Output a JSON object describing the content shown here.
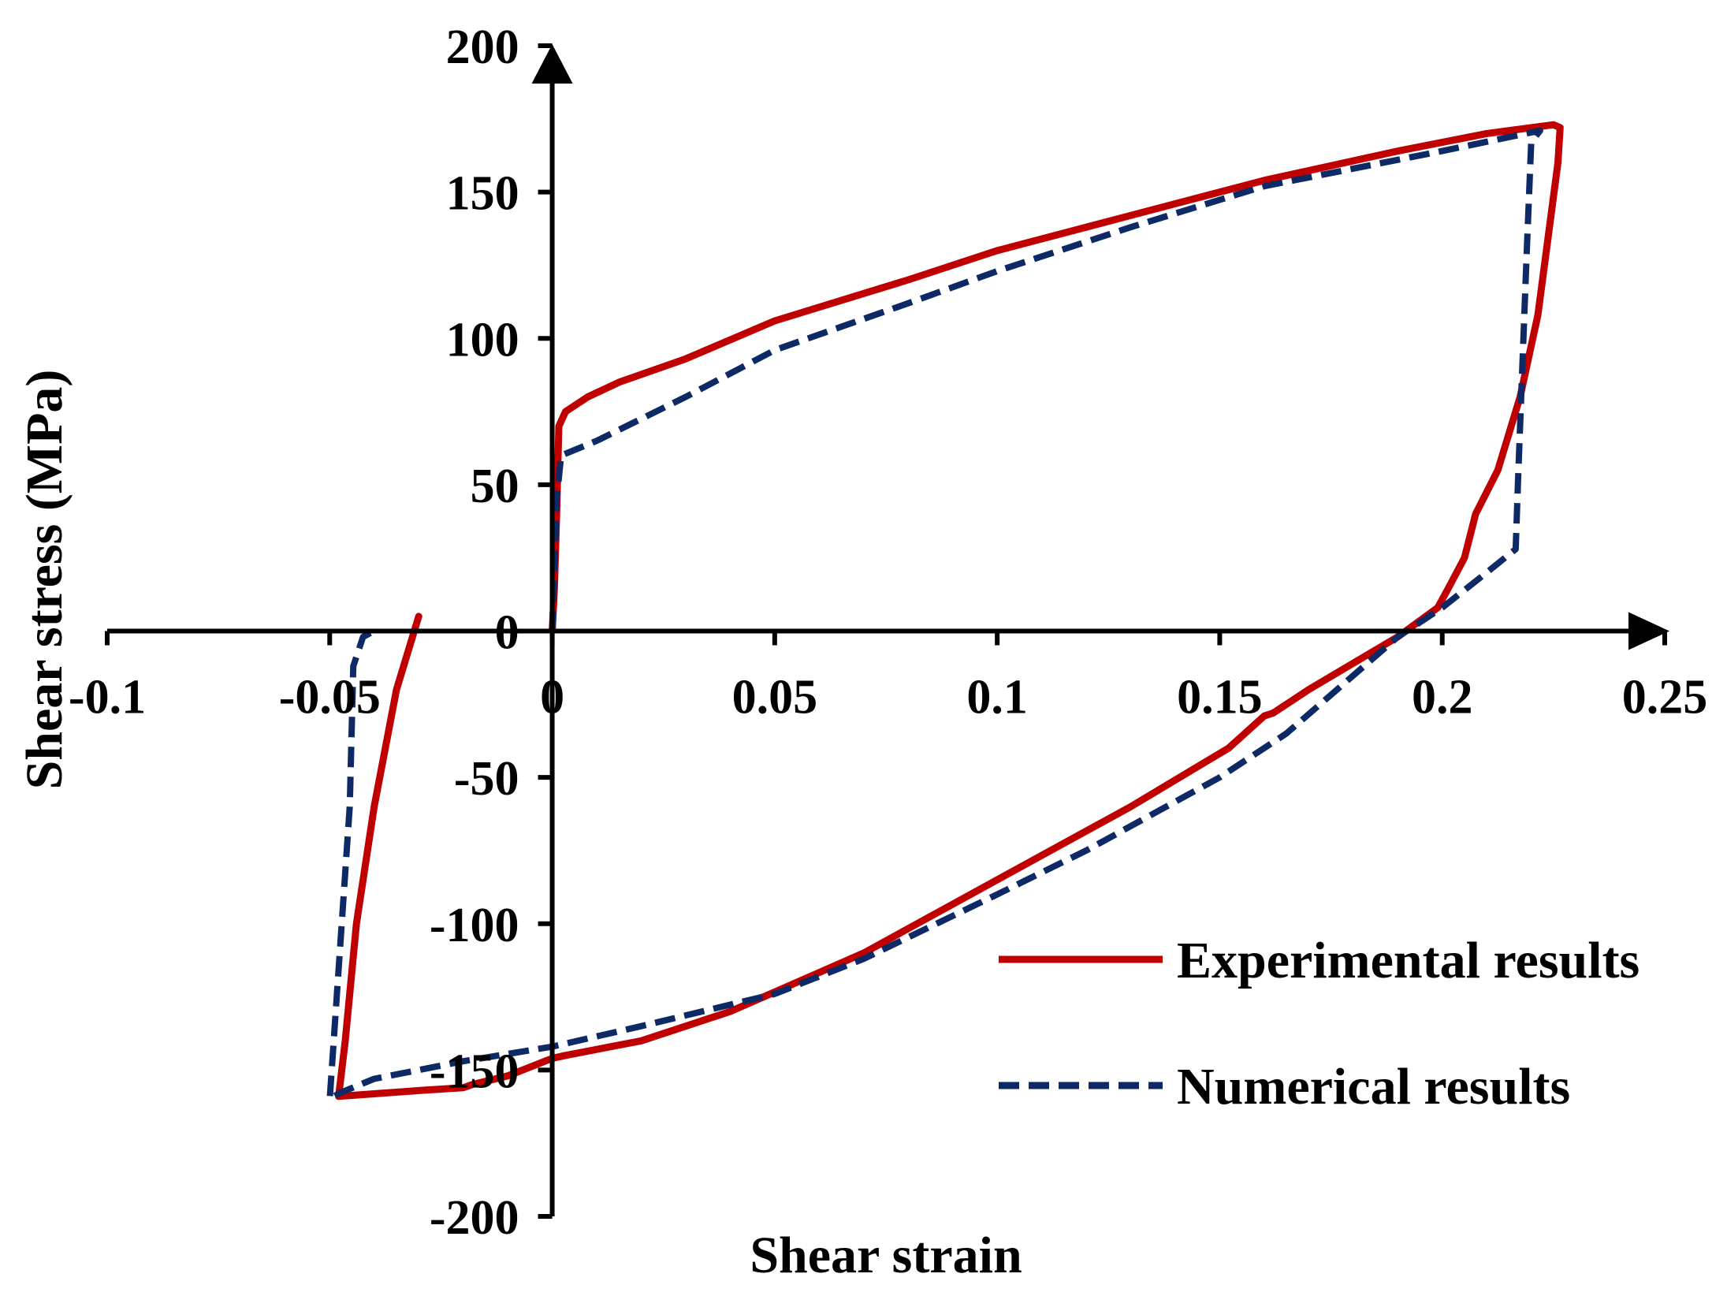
{
  "chart_data": {
    "type": "line",
    "title": "",
    "xlabel": "Shear strain",
    "ylabel": "Shear stress (MPa)",
    "xlim": [
      -0.1,
      0.25
    ],
    "ylim": [
      -200,
      200
    ],
    "x_ticks": [
      -0.1,
      -0.05,
      0,
      0.05,
      0.1,
      0.15,
      0.2,
      0.25
    ],
    "x_tick_labels": [
      "-0.1",
      "-0.05",
      "0",
      "0.05",
      "0.1",
      "0.15",
      "0.2",
      "0.25"
    ],
    "y_ticks": [
      200,
      150,
      100,
      50,
      0,
      -50,
      -100,
      -150,
      -200
    ],
    "y_tick_labels": [
      "200",
      "150",
      "100",
      "50",
      "0",
      "-50",
      "-100",
      "-150",
      "-200"
    ],
    "grid": false,
    "legend_position": "right",
    "series": [
      {
        "name": "Experimental results",
        "color": "#c00000",
        "style": "solid",
        "x": [
          0,
          0.0005,
          0.001,
          0.0015,
          0.003,
          0.008,
          0.015,
          0.03,
          0.05,
          0.08,
          0.1,
          0.13,
          0.16,
          0.19,
          0.21,
          0.225,
          0.2265,
          0.226,
          0.2215,
          0.2175,
          0.2125,
          0.2075,
          0.205,
          0.2015,
          0.199,
          0.19,
          0.17,
          0.162,
          0.16,
          0.152,
          0.13,
          0.1,
          0.07,
          0.04,
          0.02,
          0.003,
          0,
          -0.01,
          -0.018,
          -0.02,
          -0.03,
          -0.048,
          -0.0465,
          -0.044,
          -0.04,
          -0.035,
          -0.03
        ],
        "y": [
          0,
          15,
          40,
          70,
          75,
          80,
          85,
          93,
          106,
          120,
          130,
          142,
          154,
          164,
          170,
          173,
          172,
          160,
          108,
          80,
          55,
          40,
          25,
          15,
          8,
          -2,
          -20,
          -28,
          -29,
          -40,
          -60,
          -85,
          -110,
          -130,
          -140,
          -145,
          -146,
          -152,
          -155,
          -156,
          -157,
          -159,
          -140,
          -100,
          -60,
          -20,
          5
        ]
      },
      {
        "name": "Numerical results",
        "color": "#0e2a66",
        "style": "dashed",
        "x": [
          0,
          0.001,
          0.002,
          0.01,
          0.03,
          0.05,
          0.08,
          0.1,
          0.13,
          0.16,
          0.2,
          0.222,
          0.22,
          0.219,
          0.218,
          0.217,
          0.2165,
          0.21,
          0.2,
          0.19,
          0.165,
          0.15,
          0.12,
          0.1,
          0.07,
          0.05,
          0.02,
          0,
          -0.02,
          -0.04,
          -0.048,
          -0.05,
          -0.0455,
          -0.0447,
          -0.0425,
          -0.04
        ],
        "y": [
          0,
          45,
          60,
          65,
          80,
          96,
          112,
          123,
          138,
          152,
          164,
          171,
          167,
          130,
          90,
          50,
          28,
          20,
          8,
          -2,
          -35,
          -50,
          -75,
          -90,
          -112,
          -124,
          -135,
          -142,
          -147,
          -153,
          -158,
          -160,
          -60,
          -12,
          -2,
          0
        ]
      }
    ]
  }
}
